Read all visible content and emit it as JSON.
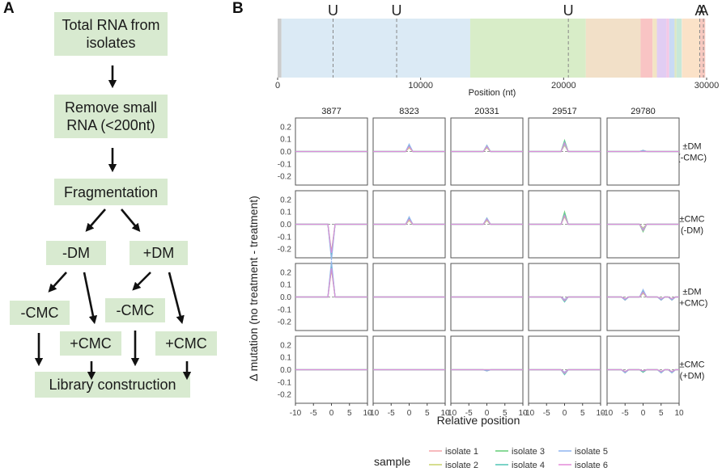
{
  "panels": {
    "a": "A",
    "b": "B"
  },
  "flowchart": {
    "total_rna": "Total RNA from\nisolates",
    "remove_small": "Remove small\nRNA (<200nt)",
    "fragmentation": "Fragmentation",
    "minus_dm": "-DM",
    "plus_dm": "+DM",
    "minus_cmc_left": "-CMC",
    "plus_cmc_left": "+CMC",
    "minus_cmc_right": "-CMC",
    "plus_cmc_right": "+CMC",
    "library": "Library construction"
  },
  "genome": {
    "xlabel": "Position (nt)",
    "xmax": 30000,
    "ticks": [
      0,
      10000,
      20000,
      30000
    ],
    "segments": [
      {
        "start": 0,
        "end": 265,
        "color": "#cccccc"
      },
      {
        "start": 265,
        "end": 13468,
        "color": "#dbeaf5"
      },
      {
        "start": 13468,
        "end": 21555,
        "color": "#d8edc8"
      },
      {
        "start": 21555,
        "end": 25384,
        "color": "#f2e0c8"
      },
      {
        "start": 25384,
        "end": 26220,
        "color": "#f9c4c4"
      },
      {
        "start": 26220,
        "end": 26522,
        "color": "#f3e4c4"
      },
      {
        "start": 26522,
        "end": 27191,
        "color": "#e1cdf3"
      },
      {
        "start": 27191,
        "end": 27387,
        "color": "#f3c8e6"
      },
      {
        "start": 27387,
        "end": 27759,
        "color": "#c9daf5"
      },
      {
        "start": 27759,
        "end": 27894,
        "color": "#dde7c2"
      },
      {
        "start": 27894,
        "end": 28259,
        "color": "#c8e8d8"
      },
      {
        "start": 28259,
        "end": 28274,
        "color": "#eeeeee"
      },
      {
        "start": 28274,
        "end": 29533,
        "color": "#fbe2c8"
      },
      {
        "start": 29533,
        "end": 29903,
        "color": "#f7c9c0"
      }
    ],
    "sites": [
      {
        "label": "U",
        "pos": 3877
      },
      {
        "label": "U",
        "pos": 8323
      },
      {
        "label": "U",
        "pos": 20331
      },
      {
        "label": "A",
        "pos": 29517
      },
      {
        "label": "A",
        "pos": 29780
      }
    ]
  },
  "chart_data": {
    "type": "line",
    "title": "",
    "xlabel": "Relative position",
    "ylabel": "Δ mutation (no treatment - treatment)",
    "xlim": [
      -10,
      10
    ],
    "ylim": [
      -0.27,
      0.27
    ],
    "xticks": [
      -10,
      -5,
      0,
      5,
      10
    ],
    "yticks": [
      -0.2,
      -0.1,
      0.0,
      0.1,
      0.2
    ],
    "columns": [
      "3877",
      "8323",
      "20331",
      "29517",
      "29780"
    ],
    "rows": [
      "±DM\n(-CMC)",
      "±CMC\n(-DM)",
      "±DM\n(+CMC)",
      "±CMC\n(+DM)"
    ],
    "x": [
      -10,
      -9,
      -8,
      -7,
      -6,
      -5,
      -4,
      -3,
      -2,
      -1,
      0,
      1,
      2,
      3,
      4,
      5,
      6,
      7,
      8,
      9,
      10
    ],
    "legend_title": "sample",
    "series": [
      {
        "name": "isolate 1",
        "color": "#f4a3a8"
      },
      {
        "name": "isolate 2",
        "color": "#c9d36a"
      },
      {
        "name": "isolate 3",
        "color": "#62cc75"
      },
      {
        "name": "isolate 4",
        "color": "#4fc4b4"
      },
      {
        "name": "isolate 5",
        "color": "#8fb4f0"
      },
      {
        "name": "isolate 6",
        "color": "#e48ad8"
      }
    ],
    "peaks": [
      [
        [
          0,
          0,
          0,
          0,
          0,
          0
        ],
        [
          0.04,
          0.03,
          0.05,
          0.05,
          0.06,
          0.04
        ],
        [
          0.04,
          0.03,
          0.05,
          0.04,
          0.05,
          0.04
        ],
        [
          0.07,
          0.05,
          0.09,
          0.08,
          0.06,
          0.07
        ],
        [
          0.01,
          0,
          0.01,
          0,
          0.01,
          0
        ]
      ],
      [
        [
          -0.25,
          -0.22,
          -0.27,
          -0.24,
          -0.29,
          -0.23
        ],
        [
          0.04,
          0.03,
          0.05,
          0.05,
          0.06,
          0.04
        ],
        [
          0.04,
          0.03,
          0.05,
          0.04,
          0.05,
          0.04
        ],
        [
          0.08,
          0.06,
          0.1,
          0.08,
          0.07,
          0.07
        ],
        [
          -0.04,
          -0.03,
          -0.06,
          -0.05,
          -0.04,
          -0.05
        ]
      ],
      [
        [
          0.25,
          0.22,
          0.27,
          0.24,
          0.29,
          0.23
        ],
        [
          0,
          0,
          0,
          0,
          0,
          0
        ],
        [
          0,
          0,
          0,
          0,
          0,
          0
        ],
        [
          -0.02,
          -0.03,
          -0.03,
          -0.04,
          -0.02,
          -0.03
        ],
        [
          0.04,
          0.03,
          0.05,
          0.04,
          0.06,
          0.04
        ]
      ],
      [
        [
          0,
          0,
          0,
          0,
          0,
          0
        ],
        [
          0,
          0,
          0,
          0,
          0,
          0
        ],
        [
          -0.01,
          0,
          -0.01,
          0,
          -0.01,
          0
        ],
        [
          -0.02,
          -0.03,
          -0.03,
          -0.04,
          -0.02,
          -0.03
        ],
        [
          -0.01,
          -0.02,
          -0.01,
          -0.02,
          -0.01,
          -0.01
        ]
      ]
    ]
  }
}
